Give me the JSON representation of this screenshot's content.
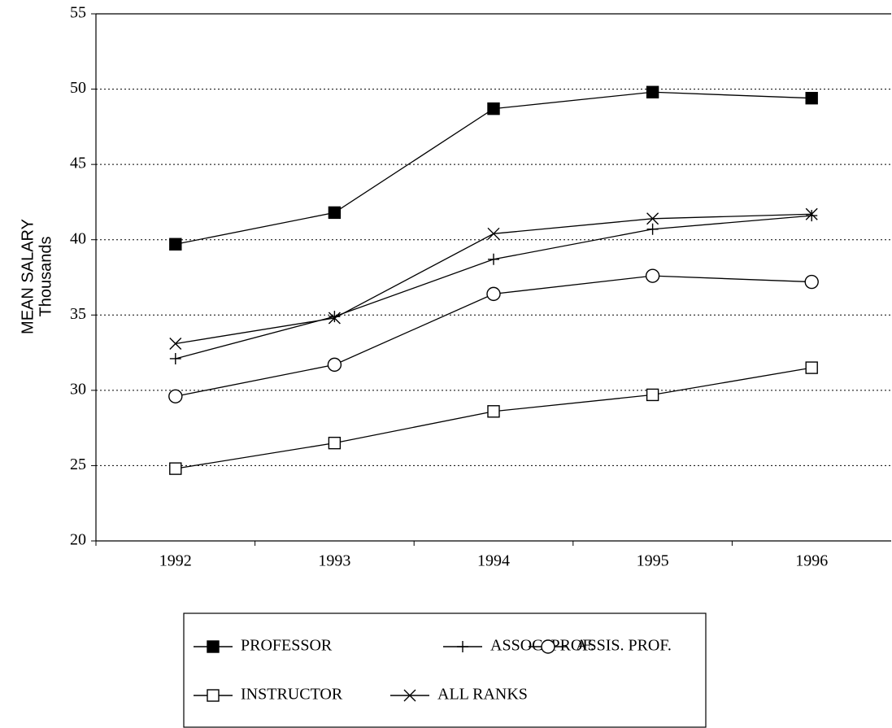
{
  "chart_data": {
    "type": "line",
    "y_label": "MEAN SALARY",
    "y_sublabel": "Thousands",
    "categories": [
      "1992",
      "1993",
      "1994",
      "1995",
      "1996"
    ],
    "series": [
      {
        "name": "PROFESSOR",
        "color": "#000000",
        "marker": "filled-square",
        "values": [
          39.7,
          41.8,
          48.7,
          49.8,
          49.4
        ]
      },
      {
        "name": "ASSOC. PROF.",
        "color": "#000000",
        "marker": "plus",
        "values": [
          32.1,
          34.9,
          38.7,
          40.7,
          41.6
        ]
      },
      {
        "name": "ASSIS. PROF.",
        "color": "#000000",
        "marker": "circle",
        "values": [
          29.6,
          31.7,
          36.4,
          37.6,
          37.2
        ]
      },
      {
        "name": "INSTRUCTOR",
        "color": "#000000",
        "marker": "square",
        "values": [
          24.8,
          26.5,
          28.6,
          29.7,
          31.5
        ]
      },
      {
        "name": "ALL RANKS",
        "color": "#000000",
        "marker": "cross",
        "values": [
          33.1,
          34.8,
          40.4,
          41.4,
          41.7
        ]
      }
    ],
    "ylim": [
      20,
      55
    ],
    "yticks": [
      20,
      25,
      30,
      35,
      40,
      45,
      50,
      55
    ],
    "grid": true
  }
}
